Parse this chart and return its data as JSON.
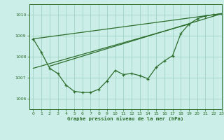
{
  "title": "Graphe pression niveau de la mer (hPa)",
  "bg_color": "#cceee8",
  "grid_color": "#99ccbb",
  "line_color": "#2d6e2d",
  "xlim": [
    -0.5,
    23
  ],
  "ylim": [
    1005.5,
    1010.5
  ],
  "yticks": [
    1006,
    1007,
    1008,
    1009,
    1010
  ],
  "xticks": [
    0,
    1,
    2,
    3,
    4,
    5,
    6,
    7,
    8,
    9,
    10,
    11,
    12,
    13,
    14,
    15,
    16,
    17,
    18,
    19,
    20,
    21,
    22,
    23
  ],
  "curved": {
    "x": [
      0,
      1,
      2,
      3,
      4,
      5,
      6,
      7,
      8,
      9,
      10,
      11,
      12,
      13,
      14,
      15,
      16,
      17,
      18,
      19,
      20,
      21,
      22,
      23
    ],
    "y": [
      1008.85,
      1008.2,
      1007.45,
      1007.2,
      1006.65,
      1006.35,
      1006.3,
      1006.3,
      1006.45,
      1006.85,
      1007.35,
      1007.15,
      1007.2,
      1007.1,
      1006.95,
      1007.5,
      1007.8,
      1008.05,
      1009.1,
      1009.55,
      1009.8,
      1009.95,
      1010.0,
      1010.05
    ]
  },
  "line1": {
    "x": [
      0,
      23
    ],
    "y": [
      1008.85,
      1010.05
    ]
  },
  "line2": {
    "x": [
      0,
      19
    ],
    "y": [
      1007.45,
      1009.55
    ]
  },
  "line3": {
    "x": [
      2,
      23
    ],
    "y": [
      1007.55,
      1010.05
    ]
  }
}
